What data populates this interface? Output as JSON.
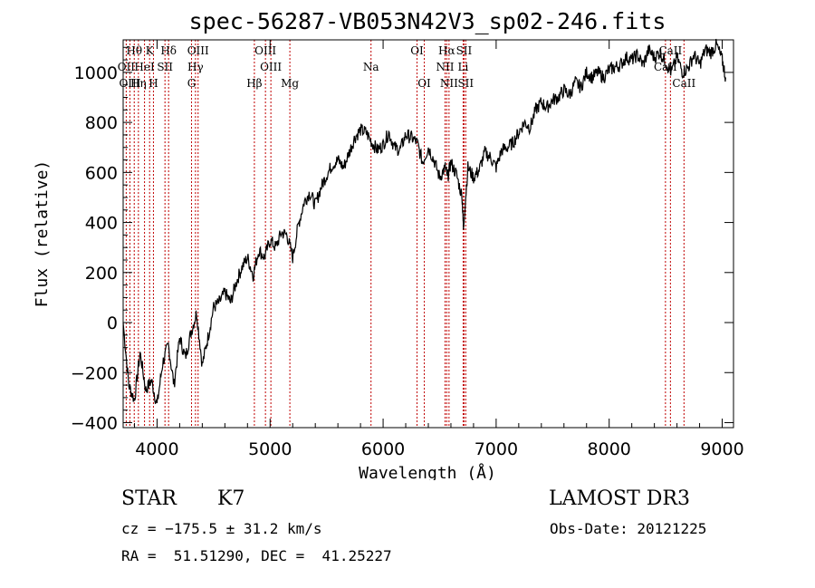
{
  "chart_data": {
    "type": "line",
    "title": "spec-56287-VB053N42V3_sp02-246.fits",
    "xlabel": "Wavelength (Å)",
    "ylabel": "Flux (relative)",
    "xlim": [
      3700,
      9100
    ],
    "ylim": [
      -420,
      1130
    ],
    "xticks": [
      4000,
      5000,
      6000,
      7000,
      8000,
      9000
    ],
    "yticks": [
      -400,
      -200,
      0,
      200,
      400,
      600,
      800,
      1000
    ],
    "line_color": "#000000",
    "marker_color": "#c00000",
    "x": [
      3700,
      3750,
      3800,
      3850,
      3900,
      3950,
      4000,
      4050,
      4100,
      4150,
      4200,
      4250,
      4300,
      4350,
      4400,
      4450,
      4500,
      4550,
      4600,
      4650,
      4700,
      4750,
      4800,
      4850,
      4900,
      4950,
      5000,
      5050,
      5100,
      5150,
      5200,
      5250,
      5300,
      5350,
      5400,
      5450,
      5500,
      5550,
      5600,
      5650,
      5700,
      5750,
      5800,
      5850,
      5900,
      5950,
      6000,
      6050,
      6100,
      6150,
      6200,
      6250,
      6300,
      6350,
      6400,
      6450,
      6500,
      6550,
      6570,
      6600,
      6650,
      6700,
      6710,
      6750,
      6800,
      6850,
      6900,
      6950,
      7000,
      7050,
      7100,
      7150,
      7200,
      7250,
      7300,
      7350,
      7400,
      7450,
      7500,
      7550,
      7600,
      7650,
      7700,
      7750,
      7800,
      7850,
      7900,
      7950,
      8000,
      8050,
      8100,
      8150,
      8200,
      8250,
      8300,
      8350,
      8400,
      8450,
      8500,
      8550,
      8600,
      8650,
      8700,
      8750,
      8800,
      8850,
      8900,
      8950,
      9000,
      9030
    ],
    "y": [
      0,
      -250,
      -310,
      -120,
      -270,
      -230,
      -330,
      -160,
      -90,
      -250,
      -60,
      -140,
      -40,
      40,
      -170,
      -60,
      60,
      80,
      120,
      80,
      160,
      220,
      260,
      190,
      290,
      260,
      330,
      300,
      360,
      350,
      260,
      390,
      480,
      520,
      470,
      540,
      590,
      630,
      650,
      620,
      680,
      740,
      770,
      760,
      720,
      690,
      710,
      760,
      700,
      690,
      750,
      740,
      720,
      640,
      700,
      650,
      580,
      620,
      580,
      640,
      590,
      500,
      380,
      620,
      580,
      610,
      680,
      660,
      620,
      690,
      700,
      720,
      760,
      800,
      780,
      850,
      880,
      860,
      890,
      900,
      930,
      910,
      960,
      940,
      1000,
      980,
      1000,
      980,
      1010,
      1020,
      1030,
      1060,
      1050,
      1070,
      1030,
      1090,
      1060,
      1080,
      1040,
      1000,
      1060,
      1000,
      1020,
      1070,
      1030,
      1090,
      1080,
      1110,
      1050,
      980
    ],
    "lines": [
      {
        "label": "Hθ",
        "wl": 3798,
        "row": 1
      },
      {
        "label": "OII",
        "wl": 3727,
        "row": 2
      },
      {
        "label": "OIII",
        "wl": 3760,
        "row": 3
      },
      {
        "label": "K",
        "wl": 3934,
        "row": 1
      },
      {
        "label": "HeI",
        "wl": 3889,
        "row": 2
      },
      {
        "label": "Hη",
        "wl": 3835,
        "row": 3
      },
      {
        "label": "Hδ",
        "wl": 4102,
        "row": 1
      },
      {
        "label": "SII",
        "wl": 4070,
        "row": 2
      },
      {
        "label": "H",
        "wl": 3968,
        "row": 3
      },
      {
        "label": "OIII",
        "wl": 4363,
        "row": 1
      },
      {
        "label": "Hγ",
        "wl": 4340,
        "row": 2
      },
      {
        "label": "G",
        "wl": 4305,
        "row": 3
      },
      {
        "label": "Hβ",
        "wl": 4861,
        "row": 3
      },
      {
        "label": "OIII",
        "wl": 4959,
        "row": 1
      },
      {
        "label": "OIII",
        "wl": 5007,
        "row": 2
      },
      {
        "label": "Mg",
        "wl": 5175,
        "row": 3
      },
      {
        "label": "Na",
        "wl": 5893,
        "row": 2
      },
      {
        "label": "OI",
        "wl": 6300,
        "row": 1
      },
      {
        "label": "OI",
        "wl": 6364,
        "row": 3
      },
      {
        "label": "Hα",
        "wl": 6563,
        "row": 1
      },
      {
        "label": "NII",
        "wl": 6548,
        "row": 2
      },
      {
        "label": "NII",
        "wl": 6583,
        "row": 3
      },
      {
        "label": "SII",
        "wl": 6716,
        "row": 1
      },
      {
        "label": "Li",
        "wl": 6708,
        "row": 2
      },
      {
        "label": "SII",
        "wl": 6731,
        "row": 3
      },
      {
        "label": "CaII",
        "wl": 8542,
        "row": 1
      },
      {
        "label": "CaII",
        "wl": 8498,
        "row": 2
      },
      {
        "label": "CaII",
        "wl": 8662,
        "row": 3
      }
    ]
  },
  "info": {
    "object_class": "STAR",
    "subclass": "K7",
    "survey": "LAMOST DR3",
    "cz": "cz = −175.5 ± 31.2 km/s",
    "obs_date": "Obs-Date: 20121225",
    "coords": "RA =  51.51290, DEC =  41.25227"
  }
}
